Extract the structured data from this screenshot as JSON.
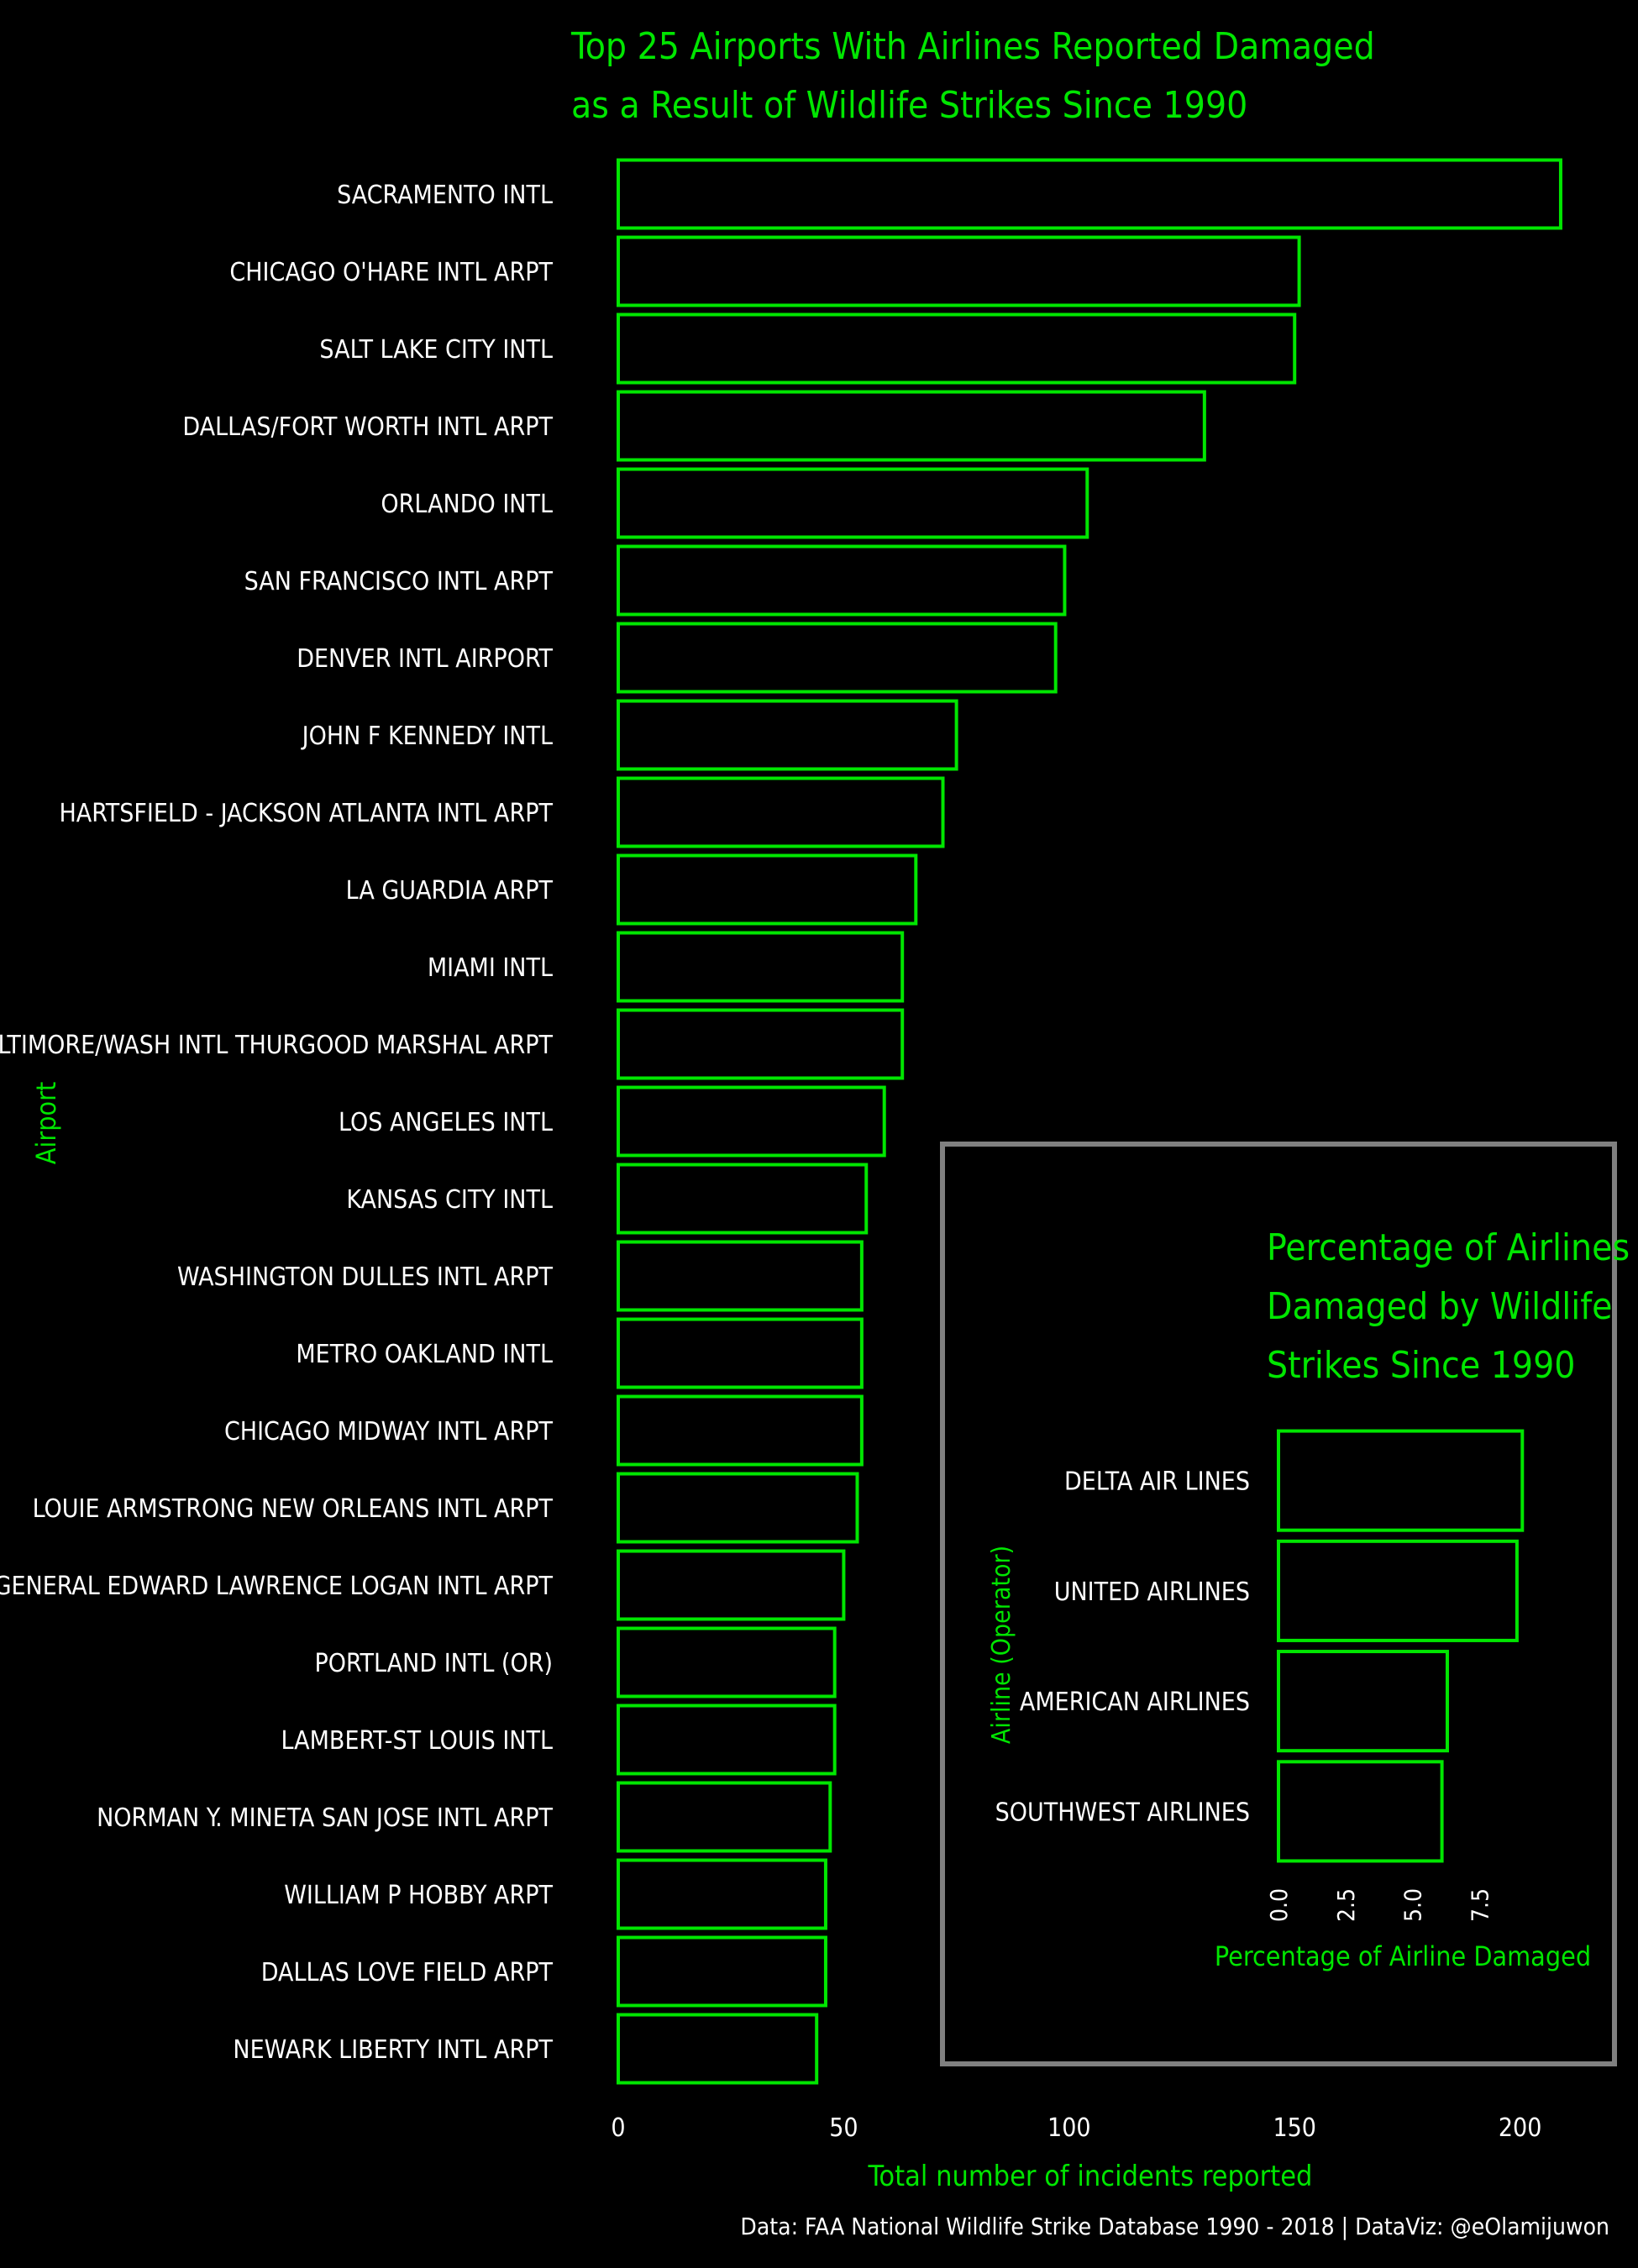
{
  "colors": {
    "background": "#000000",
    "accent": "#00e600",
    "text": "#ffffff",
    "inset_border": "#808080"
  },
  "chart_data": [
    {
      "type": "bar",
      "orientation": "horizontal",
      "title_lines": [
        "Top 25 Airports With Airlines Reported Damaged",
        "as a Result of Wildlife Strikes Since 1990"
      ],
      "xlabel": "Total number of incidents reported",
      "ylabel": "Airport",
      "xlim": [
        0,
        220
      ],
      "xticks": [
        0,
        50,
        100,
        150,
        200
      ],
      "grid": false,
      "categories": [
        "SACRAMENTO INTL",
        "CHICAGO O'HARE INTL ARPT",
        "SALT LAKE CITY INTL",
        "DALLAS/FORT WORTH INTL ARPT",
        "ORLANDO INTL",
        "SAN FRANCISCO INTL ARPT",
        "DENVER INTL AIRPORT",
        "JOHN F KENNEDY INTL",
        "HARTSFIELD - JACKSON ATLANTA INTL ARPT",
        "LA GUARDIA ARPT",
        "MIAMI INTL",
        "BALTIMORE/WASH INTL THURGOOD MARSHAL ARPT",
        "LOS ANGELES INTL",
        "KANSAS CITY INTL",
        "WASHINGTON DULLES INTL ARPT",
        "METRO OAKLAND INTL",
        "CHICAGO MIDWAY INTL ARPT",
        "LOUIE ARMSTRONG NEW ORLEANS INTL ARPT",
        "GENERAL EDWARD LAWRENCE LOGAN INTL ARPT",
        "PORTLAND INTL (OR)",
        "LAMBERT-ST LOUIS INTL",
        "NORMAN Y. MINETA SAN JOSE INTL ARPT",
        "WILLIAM P HOBBY ARPT",
        "DALLAS LOVE FIELD ARPT",
        "NEWARK LIBERTY INTL ARPT"
      ],
      "values": [
        209,
        151,
        150,
        130,
        104,
        99,
        97,
        75,
        72,
        66,
        63,
        63,
        59,
        55,
        54,
        54,
        54,
        53,
        50,
        48,
        48,
        47,
        46,
        46,
        44
      ]
    },
    {
      "type": "bar",
      "orientation": "horizontal",
      "title_lines": [
        "Percentage of Airlines",
        "Damaged by Wildlife",
        "Strikes Since 1990"
      ],
      "xlabel": "Percentage of Airline Damaged",
      "ylabel": "Airline (Operator)",
      "xlim": [
        0,
        10.0
      ],
      "xticks": [
        0.0,
        2.5,
        5.0,
        7.5
      ],
      "xtick_labels": [
        "0.0",
        "2.5",
        "5.0",
        "7.5"
      ],
      "grid": false,
      "categories": [
        "DELTA AIR LINES",
        "UNITED AIRLINES",
        "AMERICAN AIRLINES",
        "SOUTHWEST AIRLINES"
      ],
      "values": [
        9.1,
        8.9,
        6.3,
        6.1
      ]
    }
  ],
  "caption": "Data: FAA National Wildlife Strike Database 1990 - 2018 | DataViz: @eOlamijuwon"
}
